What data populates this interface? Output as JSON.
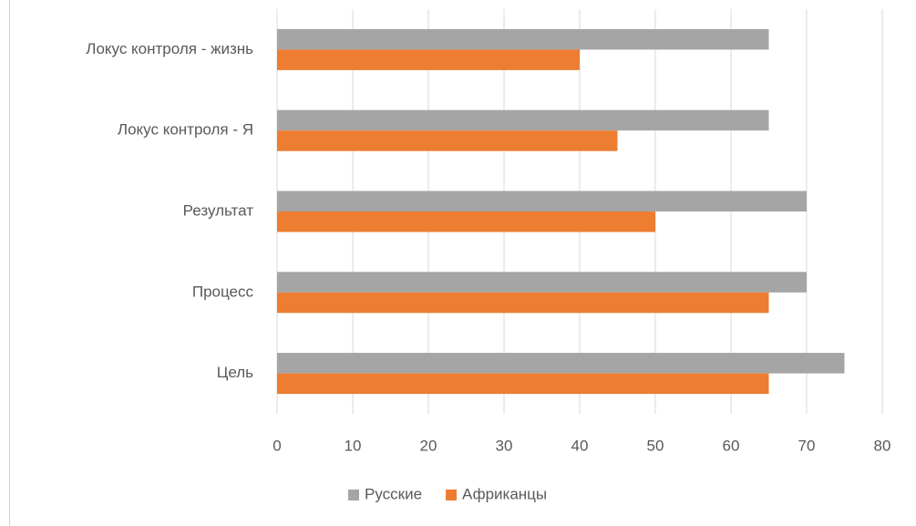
{
  "chart_data": {
    "type": "hbar",
    "categories": [
      "Локус контроля - жизнь",
      "Локус контроля - Я",
      "Результат",
      "Процесс",
      "Цель"
    ],
    "series": [
      {
        "name": "Русские",
        "color": "#a5a5a5",
        "values": [
          65,
          65,
          70,
          70,
          75
        ]
      },
      {
        "name": "Африканцы",
        "color": "#ed7d31",
        "values": [
          40,
          45,
          50,
          65,
          65
        ]
      }
    ],
    "xlim": [
      0,
      80
    ],
    "xticks": [
      0,
      10,
      20,
      30,
      40,
      50,
      60,
      70,
      80
    ],
    "grid": true,
    "legend": "bottom"
  }
}
